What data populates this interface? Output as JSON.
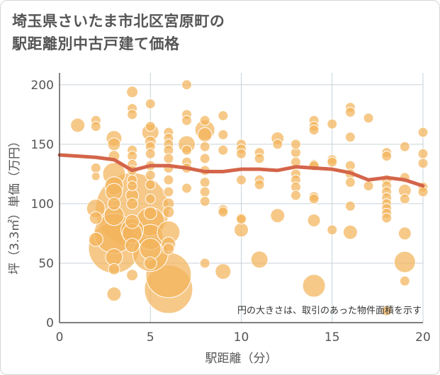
{
  "title_lines": [
    "埼玉県さいたま市北区宮原町の",
    "駅距離別中古戸建て価格"
  ],
  "chart_data": {
    "type": "scatter",
    "title": "埼玉県さいたま市北区宮原町の駅距離別中古戸建て価格",
    "xlabel": "駅距離（分）",
    "ylabel": "坪（3.3㎡）単価（万円）",
    "xlim": [
      0,
      20
    ],
    "ylim": [
      0,
      210
    ],
    "xticks": [
      0,
      5,
      10,
      15,
      20
    ],
    "yticks": [
      0,
      50,
      100,
      150,
      200
    ],
    "grid": true,
    "annotation": "円の大きさは、取引のあった物件面積を示す",
    "colors": {
      "bubble": "#f2b45c",
      "bubble_edge": "#e6a64a",
      "trend": "#d4654a",
      "grid": "#c8d2d8",
      "text": "#555555"
    },
    "points": [
      {
        "x": 1,
        "y": 166,
        "s": 10
      },
      {
        "x": 2,
        "y": 170,
        "s": 7
      },
      {
        "x": 2,
        "y": 165,
        "s": 7
      },
      {
        "x": 2,
        "y": 130,
        "s": 7
      },
      {
        "x": 2,
        "y": 123,
        "s": 6
      },
      {
        "x": 2,
        "y": 96,
        "s": 13
      },
      {
        "x": 2,
        "y": 88,
        "s": 9
      },
      {
        "x": 2,
        "y": 70,
        "s": 10
      },
      {
        "x": 3,
        "y": 155,
        "s": 11
      },
      {
        "x": 3,
        "y": 150,
        "s": 9
      },
      {
        "x": 3,
        "y": 140,
        "s": 8
      },
      {
        "x": 3,
        "y": 125,
        "s": 16
      },
      {
        "x": 3,
        "y": 115,
        "s": 13
      },
      {
        "x": 3,
        "y": 110,
        "s": 12
      },
      {
        "x": 3,
        "y": 100,
        "s": 9
      },
      {
        "x": 3,
        "y": 90,
        "s": 14
      },
      {
        "x": 3,
        "y": 75,
        "s": 28
      },
      {
        "x": 3,
        "y": 63,
        "s": 36
      },
      {
        "x": 3,
        "y": 55,
        "s": 12
      },
      {
        "x": 3,
        "y": 45,
        "s": 8
      },
      {
        "x": 3,
        "y": 24,
        "s": 10
      },
      {
        "x": 4,
        "y": 194,
        "s": 8
      },
      {
        "x": 4,
        "y": 180,
        "s": 7
      },
      {
        "x": 4,
        "y": 175,
        "s": 7
      },
      {
        "x": 4,
        "y": 145,
        "s": 7
      },
      {
        "x": 4,
        "y": 140,
        "s": 7
      },
      {
        "x": 4,
        "y": 133,
        "s": 7
      },
      {
        "x": 4,
        "y": 128,
        "s": 7
      },
      {
        "x": 4,
        "y": 120,
        "s": 7
      },
      {
        "x": 4,
        "y": 115,
        "s": 7
      },
      {
        "x": 4,
        "y": 107,
        "s": 9
      },
      {
        "x": 4,
        "y": 100,
        "s": 8
      },
      {
        "x": 4,
        "y": 95,
        "s": 52
      },
      {
        "x": 4,
        "y": 85,
        "s": 10
      },
      {
        "x": 4,
        "y": 78,
        "s": 16
      },
      {
        "x": 4,
        "y": 75,
        "s": 14
      },
      {
        "x": 4,
        "y": 65,
        "s": 10
      },
      {
        "x": 4,
        "y": 40,
        "s": 8
      },
      {
        "x": 5,
        "y": 184,
        "s": 7
      },
      {
        "x": 5,
        "y": 165,
        "s": 7
      },
      {
        "x": 5,
        "y": 160,
        "s": 12
      },
      {
        "x": 5,
        "y": 152,
        "s": 8
      },
      {
        "x": 5,
        "y": 148,
        "s": 7
      },
      {
        "x": 5,
        "y": 142,
        "s": 7
      },
      {
        "x": 5,
        "y": 132,
        "s": 7
      },
      {
        "x": 5,
        "y": 124,
        "s": 7
      },
      {
        "x": 5,
        "y": 116,
        "s": 7
      },
      {
        "x": 5,
        "y": 104,
        "s": 7
      },
      {
        "x": 5,
        "y": 92,
        "s": 9
      },
      {
        "x": 5,
        "y": 85,
        "s": 20
      },
      {
        "x": 5,
        "y": 72,
        "s": 18
      },
      {
        "x": 5,
        "y": 62,
        "s": 15
      },
      {
        "x": 5,
        "y": 58,
        "s": 25
      },
      {
        "x": 5,
        "y": 50,
        "s": 9
      },
      {
        "x": 6,
        "y": 160,
        "s": 7
      },
      {
        "x": 6,
        "y": 155,
        "s": 7
      },
      {
        "x": 6,
        "y": 150,
        "s": 7
      },
      {
        "x": 6,
        "y": 145,
        "s": 7
      },
      {
        "x": 6,
        "y": 138,
        "s": 7
      },
      {
        "x": 6,
        "y": 130,
        "s": 7
      },
      {
        "x": 6,
        "y": 120,
        "s": 7
      },
      {
        "x": 6,
        "y": 110,
        "s": 7
      },
      {
        "x": 6,
        "y": 100,
        "s": 8
      },
      {
        "x": 6,
        "y": 93,
        "s": 8
      },
      {
        "x": 6,
        "y": 76,
        "s": 16
      },
      {
        "x": 6,
        "y": 66,
        "s": 10
      },
      {
        "x": 6,
        "y": 62,
        "s": 8
      },
      {
        "x": 6,
        "y": 40,
        "s": 32
      },
      {
        "x": 6,
        "y": 28,
        "s": 34
      },
      {
        "x": 7,
        "y": 200,
        "s": 7
      },
      {
        "x": 7,
        "y": 175,
        "s": 7
      },
      {
        "x": 7,
        "y": 170,
        "s": 7
      },
      {
        "x": 7,
        "y": 150,
        "s": 12
      },
      {
        "x": 7,
        "y": 145,
        "s": 7
      },
      {
        "x": 7,
        "y": 135,
        "s": 7
      },
      {
        "x": 7,
        "y": 130,
        "s": 7
      },
      {
        "x": 7,
        "y": 113,
        "s": 7
      },
      {
        "x": 8,
        "y": 170,
        "s": 7
      },
      {
        "x": 8,
        "y": 162,
        "s": 14
      },
      {
        "x": 8,
        "y": 158,
        "s": 10
      },
      {
        "x": 8,
        "y": 148,
        "s": 7
      },
      {
        "x": 8,
        "y": 138,
        "s": 7
      },
      {
        "x": 8,
        "y": 128,
        "s": 7
      },
      {
        "x": 8,
        "y": 118,
        "s": 7
      },
      {
        "x": 8,
        "y": 110,
        "s": 7
      },
      {
        "x": 8,
        "y": 102,
        "s": 7
      },
      {
        "x": 8,
        "y": 50,
        "s": 7
      },
      {
        "x": 9,
        "y": 174,
        "s": 7
      },
      {
        "x": 9,
        "y": 158,
        "s": 7
      },
      {
        "x": 9,
        "y": 145,
        "s": 7
      },
      {
        "x": 9,
        "y": 95,
        "s": 7
      },
      {
        "x": 9,
        "y": 93,
        "s": 7
      },
      {
        "x": 9,
        "y": 43,
        "s": 11
      },
      {
        "x": 10,
        "y": 150,
        "s": 7
      },
      {
        "x": 10,
        "y": 146,
        "s": 7
      },
      {
        "x": 10,
        "y": 142,
        "s": 7
      },
      {
        "x": 10,
        "y": 120,
        "s": 7
      },
      {
        "x": 10,
        "y": 88,
        "s": 7
      },
      {
        "x": 10,
        "y": 87,
        "s": 7
      },
      {
        "x": 10,
        "y": 78,
        "s": 10
      },
      {
        "x": 11,
        "y": 143,
        "s": 7
      },
      {
        "x": 11,
        "y": 138,
        "s": 7
      },
      {
        "x": 11,
        "y": 120,
        "s": 7
      },
      {
        "x": 11,
        "y": 116,
        "s": 7
      },
      {
        "x": 11,
        "y": 53,
        "s": 12
      },
      {
        "x": 12,
        "y": 155,
        "s": 9
      },
      {
        "x": 12,
        "y": 150,
        "s": 7
      },
      {
        "x": 12,
        "y": 90,
        "s": 10
      },
      {
        "x": 13,
        "y": 143,
        "s": 7
      },
      {
        "x": 13,
        "y": 150,
        "s": 7
      },
      {
        "x": 13,
        "y": 135,
        "s": 7
      },
      {
        "x": 13,
        "y": 125,
        "s": 7
      },
      {
        "x": 13,
        "y": 120,
        "s": 7
      },
      {
        "x": 13,
        "y": 114,
        "s": 7
      },
      {
        "x": 13,
        "y": 107,
        "s": 7
      },
      {
        "x": 14,
        "y": 170,
        "s": 7
      },
      {
        "x": 14,
        "y": 165,
        "s": 7
      },
      {
        "x": 14,
        "y": 162,
        "s": 7
      },
      {
        "x": 14,
        "y": 133,
        "s": 7
      },
      {
        "x": 14,
        "y": 132,
        "s": 7
      },
      {
        "x": 14,
        "y": 106,
        "s": 7
      },
      {
        "x": 14,
        "y": 104,
        "s": 7
      },
      {
        "x": 14,
        "y": 86,
        "s": 9
      },
      {
        "x": 14,
        "y": 31,
        "s": 16
      },
      {
        "x": 15,
        "y": 167,
        "s": 7
      },
      {
        "x": 15,
        "y": 137,
        "s": 7
      },
      {
        "x": 15,
        "y": 135,
        "s": 7
      },
      {
        "x": 15,
        "y": 78,
        "s": 7
      },
      {
        "x": 16,
        "y": 181,
        "s": 7
      },
      {
        "x": 16,
        "y": 177,
        "s": 7
      },
      {
        "x": 16,
        "y": 156,
        "s": 7
      },
      {
        "x": 16,
        "y": 132,
        "s": 7
      },
      {
        "x": 16,
        "y": 125,
        "s": 7
      },
      {
        "x": 16,
        "y": 118,
        "s": 7
      },
      {
        "x": 16,
        "y": 98,
        "s": 7
      },
      {
        "x": 16,
        "y": 76,
        "s": 10
      },
      {
        "x": 17,
        "y": 172,
        "s": 7
      },
      {
        "x": 17,
        "y": 115,
        "s": 7
      },
      {
        "x": 18,
        "y": 143,
        "s": 7
      },
      {
        "x": 18,
        "y": 140,
        "s": 7
      },
      {
        "x": 18,
        "y": 120,
        "s": 7
      },
      {
        "x": 18,
        "y": 115,
        "s": 7
      },
      {
        "x": 18,
        "y": 110,
        "s": 7
      },
      {
        "x": 18,
        "y": 105,
        "s": 7
      },
      {
        "x": 18,
        "y": 100,
        "s": 7
      },
      {
        "x": 18,
        "y": 96,
        "s": 7
      },
      {
        "x": 18,
        "y": 92,
        "s": 7
      },
      {
        "x": 18,
        "y": 88,
        "s": 7
      },
      {
        "x": 18,
        "y": 10,
        "s": 7
      },
      {
        "x": 19,
        "y": 148,
        "s": 7
      },
      {
        "x": 19,
        "y": 122,
        "s": 7
      },
      {
        "x": 19,
        "y": 111,
        "s": 9
      },
      {
        "x": 19,
        "y": 104,
        "s": 7
      },
      {
        "x": 19,
        "y": 75,
        "s": 9
      },
      {
        "x": 19,
        "y": 51,
        "s": 15
      },
      {
        "x": 19,
        "y": 35,
        "s": 7
      },
      {
        "x": 20,
        "y": 160,
        "s": 7
      },
      {
        "x": 20,
        "y": 142,
        "s": 7
      },
      {
        "x": 20,
        "y": 134,
        "s": 7
      },
      {
        "x": 20,
        "y": 114,
        "s": 7
      },
      {
        "x": 20,
        "y": 110,
        "s": 7
      }
    ],
    "trend": {
      "x": [
        0,
        1,
        2,
        3,
        4,
        5,
        6,
        7,
        8,
        9,
        10,
        11,
        12,
        13,
        14,
        15,
        16,
        17,
        18,
        19,
        20
      ],
      "y": [
        141,
        140,
        139,
        137,
        128,
        132,
        132,
        130,
        127,
        127,
        129,
        129,
        128,
        131,
        130,
        129,
        126,
        120,
        122,
        120,
        115
      ]
    }
  }
}
